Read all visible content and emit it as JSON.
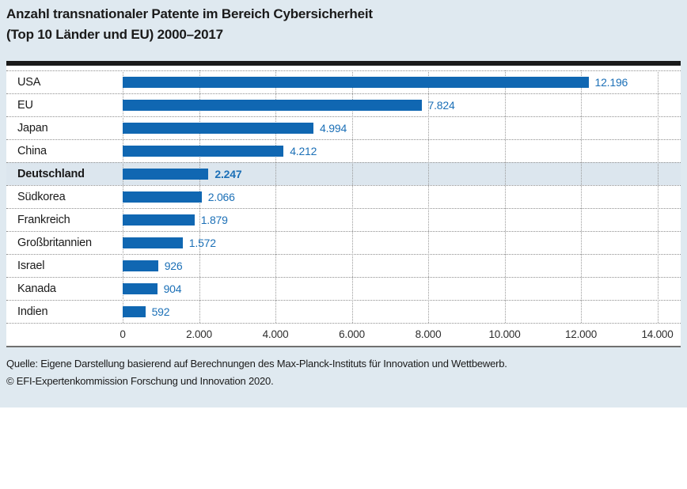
{
  "title": {
    "line1": "Anzahl transnationaler Patente im Bereich Cybersicherheit",
    "line2": "(Top 10 Länder und EU) 2000–2017"
  },
  "chart_data": {
    "type": "bar",
    "orientation": "horizontal",
    "categories": [
      "USA",
      "EU",
      "Japan",
      "China",
      "Deutschland",
      "Südkorea",
      "Frankreich",
      "Großbritannien",
      "Israel",
      "Kanada",
      "Indien"
    ],
    "values": [
      12196,
      7824,
      4994,
      4212,
      2247,
      2066,
      1879,
      1572,
      926,
      904,
      592
    ],
    "value_labels": [
      "12.196",
      "7.824",
      "4.994",
      "4.212",
      "2.247",
      "2.066",
      "1.879",
      "1.572",
      "926",
      "904",
      "592"
    ],
    "highlight_category": "Deutschland",
    "xlim": [
      0,
      14000
    ],
    "x_ticks": [
      0,
      2000,
      4000,
      6000,
      8000,
      10000,
      12000,
      14000
    ],
    "x_tick_labels": [
      "0",
      "2.000",
      "4.000",
      "6.000",
      "8.000",
      "10.000",
      "12.000",
      "14.000"
    ],
    "grid": "dotted-vertical-and-row-separators",
    "legend": "none",
    "bar_color": "#1067b2",
    "value_text_color": "#1c70b7",
    "highlight_row_color": "#dce6ee"
  },
  "footer": {
    "source": "Quelle: Eigene Darstellung basierend auf Berechnungen des Max-Planck-Instituts für Innovation und Wettbewerb.",
    "copyright": "© EFI-Expertenkommission Forschung und Innovation 2020."
  },
  "colors": {
    "panel_background": "#dfe9f0",
    "chart_background": "#ffffff",
    "title_rule": "#1a1a1a",
    "axis_rule": "#707070",
    "gridline": "#9a9a9a"
  }
}
